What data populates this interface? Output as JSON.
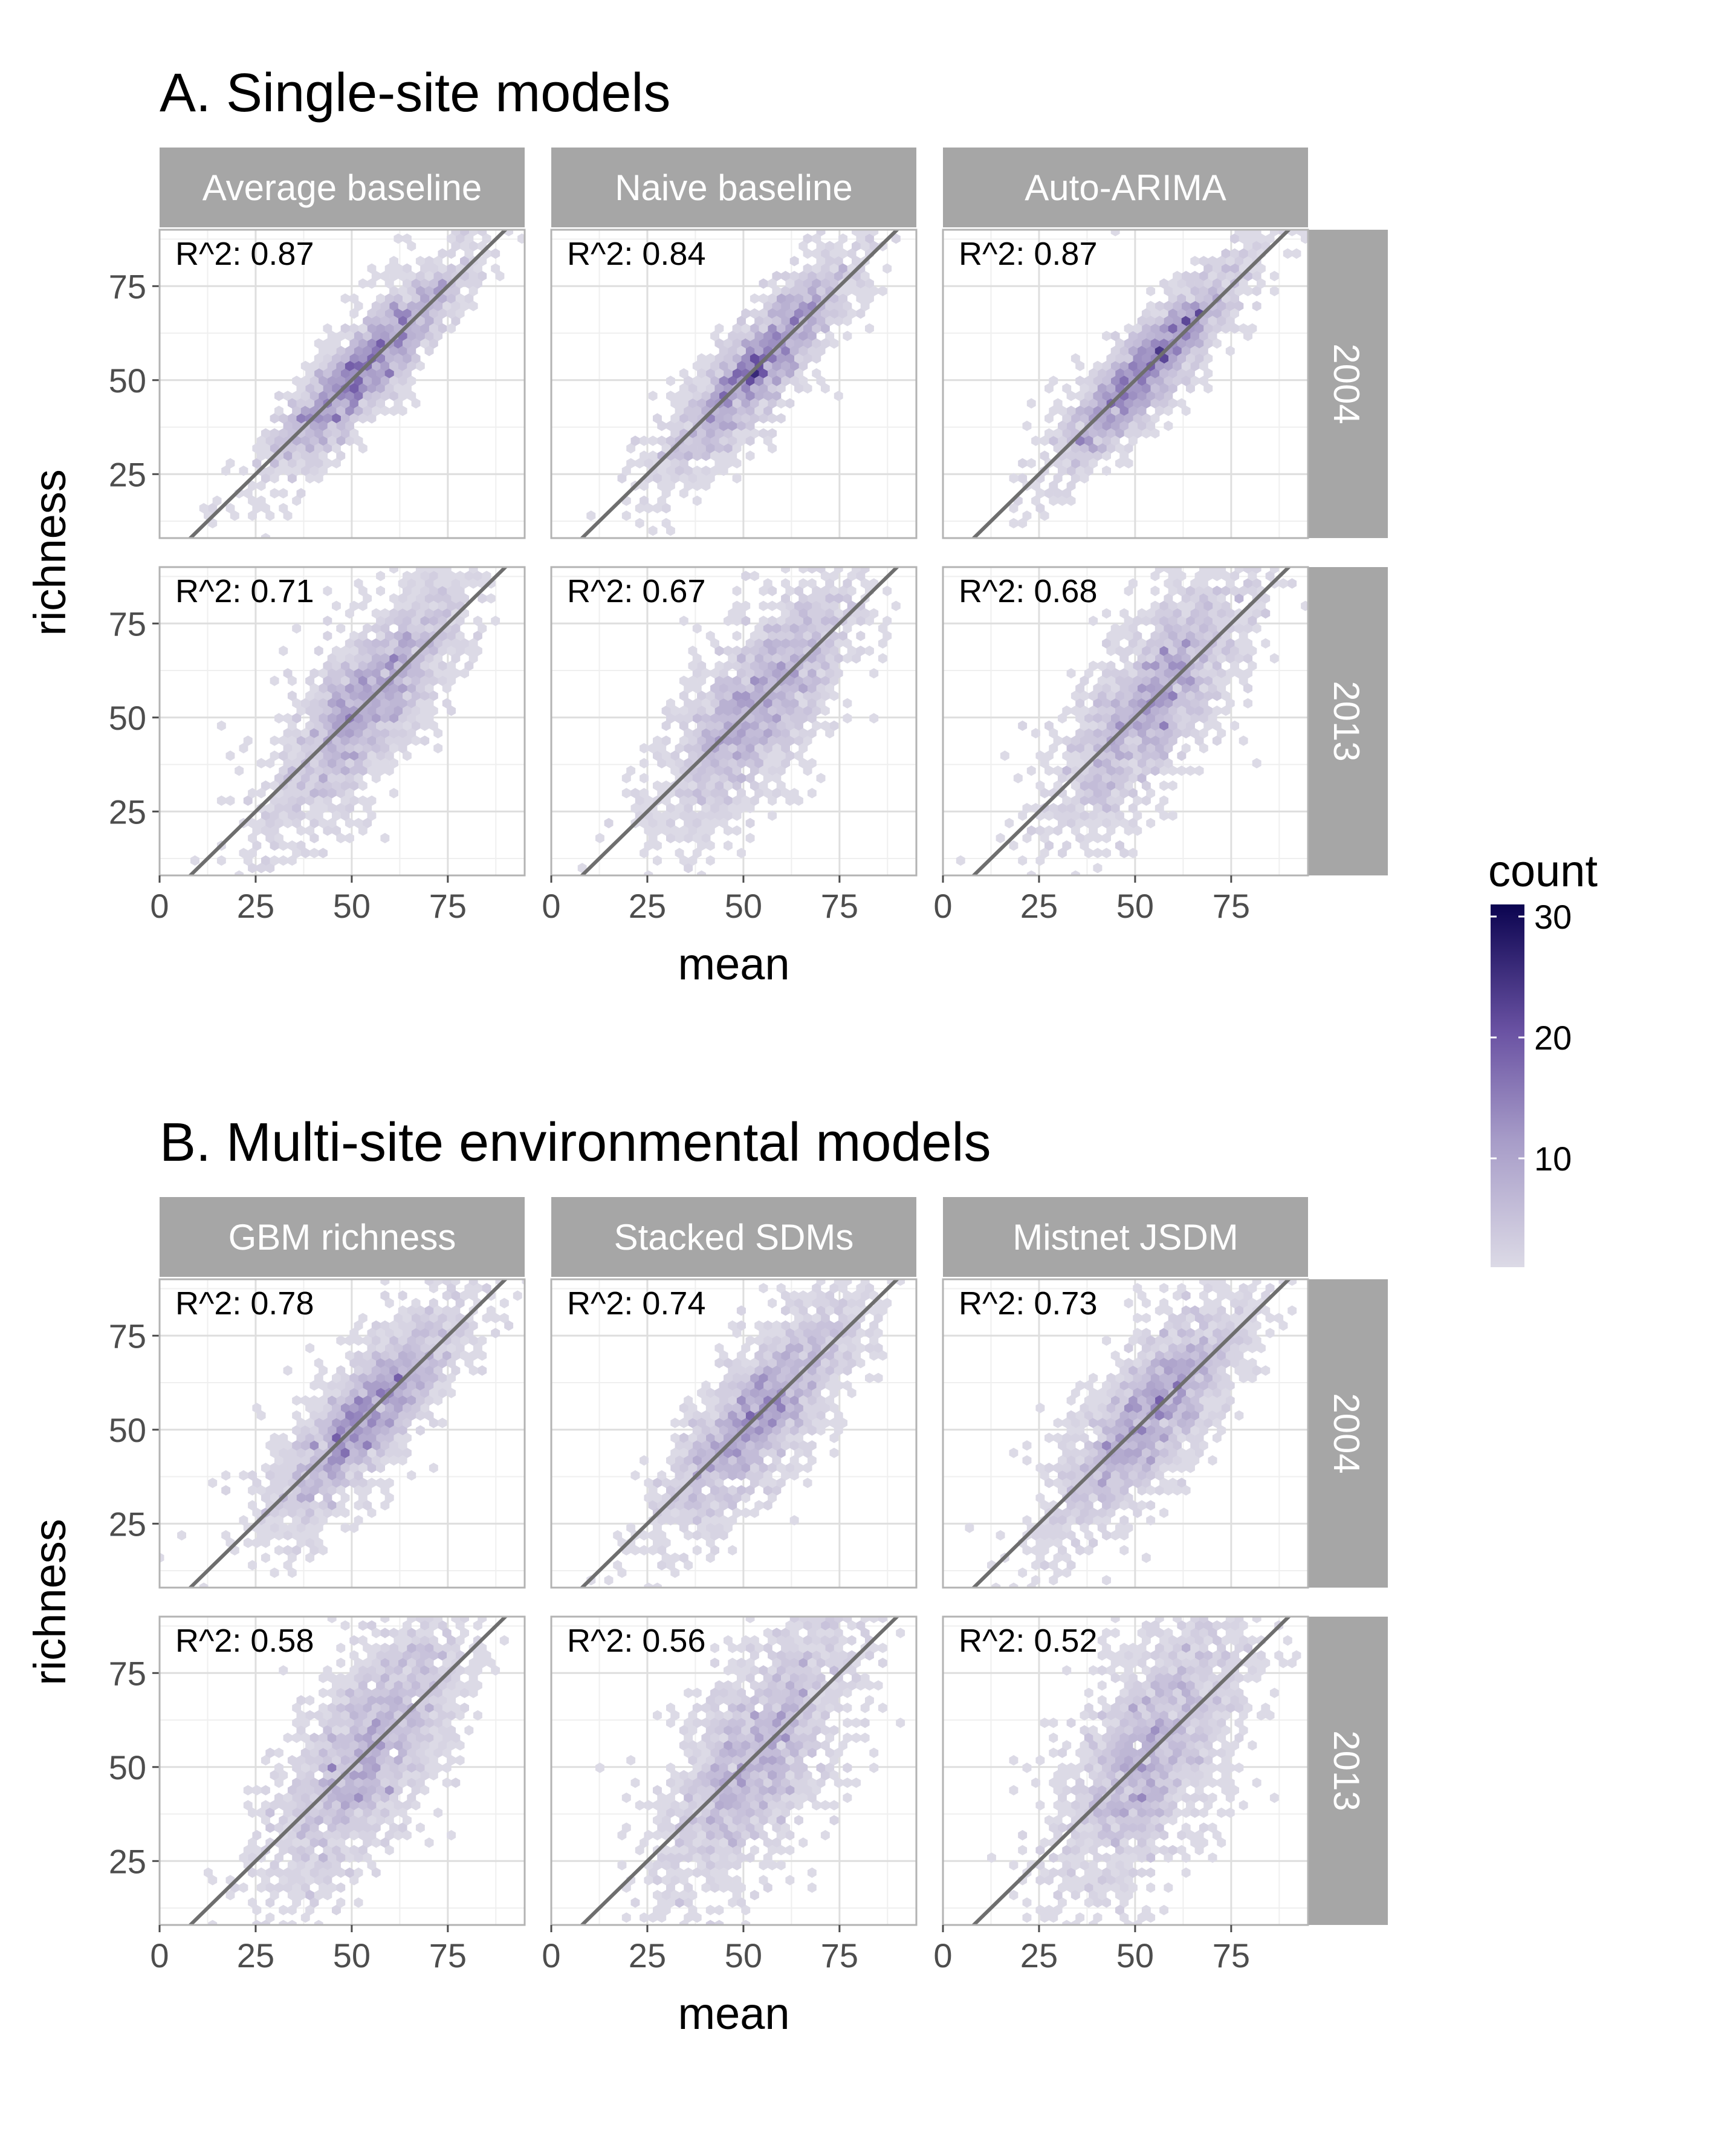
{
  "chart_data": {
    "type": "hexbin",
    "x_axis": {
      "label": "mean",
      "ticks": [
        0,
        25,
        50,
        75
      ],
      "range": [
        0,
        95
      ]
    },
    "y_axis": {
      "label": "richness",
      "ticks": [
        25,
        50,
        75
      ],
      "range": [
        8,
        90
      ]
    },
    "years": [
      "2004",
      "2013"
    ],
    "reference_line": {
      "slope": 1,
      "intercept": 0
    },
    "legend": {
      "title": "count",
      "ticks": [
        10,
        20,
        30
      ],
      "range": [
        1,
        31
      ],
      "color_low": "#dcdae6",
      "color_high": "#0b0450",
      "placement": "right"
    },
    "sections": [
      {
        "title": "A. Single-site models",
        "panels": [
          {
            "model": "Average baseline",
            "r2": {
              "2004": "0.87",
              "2013": "0.71"
            }
          },
          {
            "model": "Naive baseline",
            "r2": {
              "2004": "0.84",
              "2013": "0.67"
            }
          },
          {
            "model": "Auto-ARIMA",
            "r2": {
              "2004": "0.87",
              "2013": "0.68"
            }
          }
        ]
      },
      {
        "title": "B. Multi-site environmental models",
        "panels": [
          {
            "model": "GBM richness",
            "r2": {
              "2004": "0.78",
              "2013": "0.58"
            }
          },
          {
            "model": "Stacked SDMs",
            "r2": {
              "2004": "0.74",
              "2013": "0.56"
            }
          },
          {
            "model": "Mistnet JSDM",
            "r2": {
              "2004": "0.73",
              "2013": "0.52"
            }
          }
        ]
      }
    ],
    "r2_prefix": "R^2:"
  },
  "colors": {
    "strip_background": "#a6a6a6",
    "panel_border": "#b3b3b3",
    "grid_major": "#dedede",
    "grid_minor": "#efefef",
    "reference_line": "#6e6e6e"
  }
}
